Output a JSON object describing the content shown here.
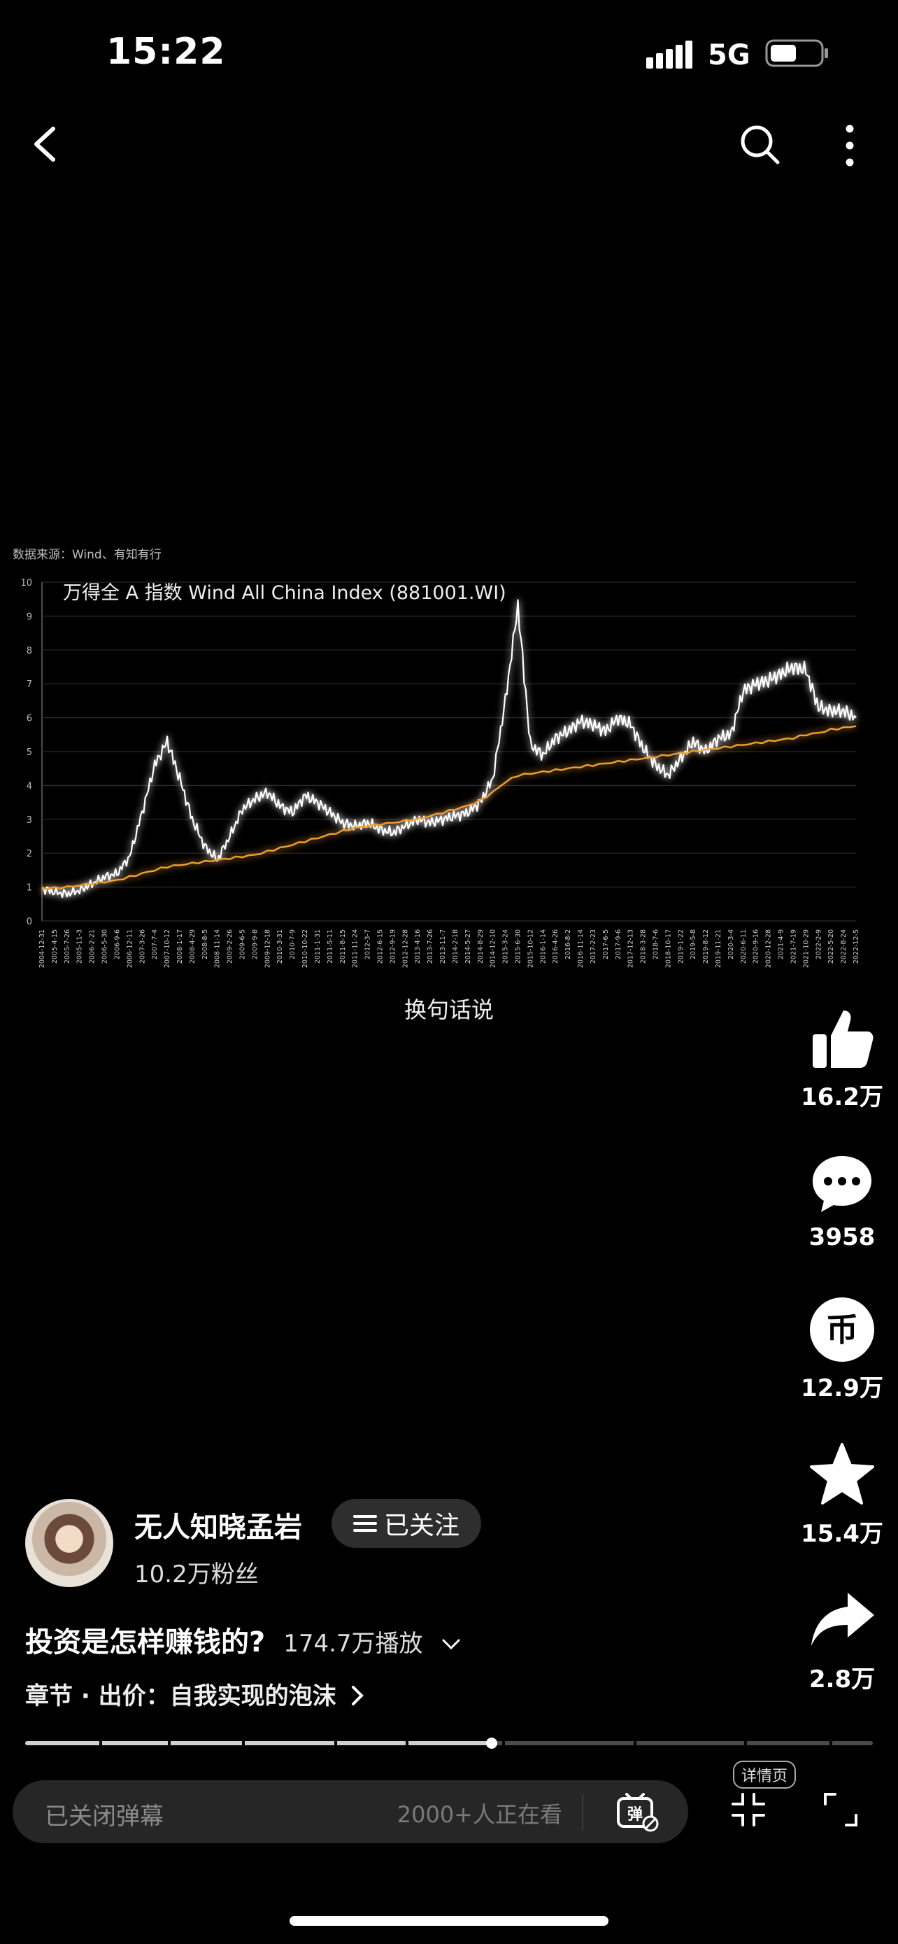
{
  "status": {
    "time": "15:22",
    "network": "5G"
  },
  "chart": {
    "source": "数据来源：Wind、有知有行",
    "title": "万得全 A 指数 Wind All China Index (881001.WI)",
    "caption": "换句话说"
  },
  "chart_data": {
    "type": "line",
    "title": "万得全 A 指数 Wind All China Index (881001.WI)",
    "ylim": [
      0,
      10
    ],
    "yticks": [
      0,
      1,
      2,
      3,
      4,
      5,
      6,
      7,
      8,
      9,
      10
    ],
    "grid": true,
    "x": [
      "2004-12-31",
      "2005-4-15",
      "2005-7-26",
      "2005-11-3",
      "2006-2-21",
      "2006-5-30",
      "2006-9-6",
      "2006-12-11",
      "2007-3-26",
      "2007-7-4",
      "2007-10-12",
      "2008-1-17",
      "2008-4-29",
      "2008-8-5",
      "2008-11-14",
      "2009-2-26",
      "2009-6-5",
      "2009-9-8",
      "2009-12-18",
      "2010-3-31",
      "2010-7-9",
      "2010-10-22",
      "2011-1-31",
      "2011-5-11",
      "2011-8-15",
      "2011-11-24",
      "2012-3-7",
      "2012-6-15",
      "2012-9-19",
      "2012-12-28",
      "2013-4-16",
      "2013-7-26",
      "2013-11-7",
      "2014-2-18",
      "2014-5-27",
      "2014-8-29",
      "2014-12-10",
      "2015-3-24",
      "2015-6-30",
      "2015-10-12",
      "2016-1-14",
      "2016-4-26",
      "2016-8-2",
      "2016-11-14",
      "2017-2-23",
      "2017-6-5",
      "2017-9-6",
      "2017-12-13",
      "2018-3-28",
      "2018-7-6",
      "2018-10-17",
      "2019-1-22",
      "2019-5-8",
      "2019-8-12",
      "2019-11-21",
      "2020-3-4",
      "2020-6-11",
      "2020-9-16",
      "2020-12-28",
      "2021-4-9",
      "2021-7-19",
      "2021-10-29",
      "2022-2-9",
      "2022-5-20",
      "2022-8-24",
      "2022-12-5"
    ],
    "series": [
      {
        "values": [
          0.95,
          0.85,
          0.8,
          0.9,
          1.1,
          1.3,
          1.4,
          1.9,
          3.2,
          4.6,
          5.3,
          4.2,
          3.0,
          2.2,
          1.8,
          2.5,
          3.3,
          3.6,
          3.8,
          3.4,
          3.2,
          3.7,
          3.5,
          3.2,
          2.9,
          2.8,
          2.9,
          2.7,
          2.6,
          2.8,
          3.0,
          2.9,
          3.0,
          3.1,
          3.2,
          3.5,
          4.2,
          6.5,
          9.3,
          5.2,
          4.9,
          5.4,
          5.6,
          5.9,
          5.8,
          5.6,
          6.0,
          5.8,
          5.1,
          4.6,
          4.3,
          4.8,
          5.3,
          5.0,
          5.4,
          5.5,
          6.8,
          7.0,
          7.1,
          7.3,
          7.5,
          7.4,
          6.3,
          6.2,
          6.2,
          6.0
        ],
        "color": "#ffffff"
      },
      {
        "values": [
          0.95,
          0.97,
          1.0,
          1.05,
          1.1,
          1.15,
          1.2,
          1.3,
          1.4,
          1.5,
          1.6,
          1.65,
          1.7,
          1.75,
          1.8,
          1.85,
          1.9,
          1.95,
          2.05,
          2.15,
          2.25,
          2.35,
          2.45,
          2.55,
          2.65,
          2.75,
          2.8,
          2.85,
          2.9,
          2.95,
          3.0,
          3.1,
          3.2,
          3.3,
          3.4,
          3.55,
          3.8,
          4.1,
          4.3,
          4.35,
          4.4,
          4.45,
          4.5,
          4.55,
          4.6,
          4.65,
          4.7,
          4.75,
          4.8,
          4.85,
          4.9,
          4.95,
          5.0,
          5.05,
          5.1,
          5.15,
          5.2,
          5.25,
          5.3,
          5.35,
          5.4,
          5.5,
          5.55,
          5.65,
          5.7,
          5.75
        ],
        "color": "#f0a030"
      }
    ]
  },
  "actions": {
    "like": "16.2万",
    "comment": "3958",
    "coin": "12.9万",
    "favorite": "15.4万",
    "share": "2.8万"
  },
  "author": {
    "name": "无人知晓孟岩",
    "fans": "10.2万粉丝",
    "follow_label": "已关注"
  },
  "video": {
    "title": "投资是怎样赚钱的?",
    "plays": "174.7万播放",
    "chapter": "章节 · 出价：自我实现的泡沫"
  },
  "progress": {
    "fraction": 0.55
  },
  "bottom": {
    "danmu_placeholder": "已关闭弹幕",
    "watching": "2000+人正在看",
    "detail_label": "详情页"
  },
  "colors": {
    "accent": "#f0a030",
    "background": "#000000",
    "line": "#ffffff"
  },
  "icons": [
    "back-icon",
    "search-icon",
    "more-icon",
    "like-icon",
    "comment-icon",
    "coin-icon",
    "favorite-icon",
    "share-icon",
    "danmu-icon",
    "shrink-icon",
    "fullscreen-icon"
  ]
}
